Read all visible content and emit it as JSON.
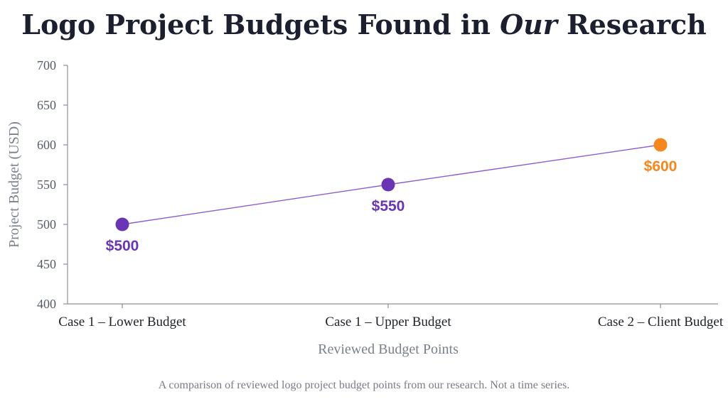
{
  "chart_data": {
    "type": "line",
    "title_parts": [
      "Logo Project Budgets Found in ",
      "Our",
      " Research"
    ],
    "xlabel": "Reviewed Budget Points",
    "ylabel": "Project Budget (USD)",
    "ylim": [
      400,
      700
    ],
    "yticks": [
      400,
      450,
      500,
      550,
      600,
      650,
      700
    ],
    "categories": [
      "Case 1 – Lower Budget",
      "Case 1 – Upper Budget",
      "Case 2 – Client Budget"
    ],
    "values": [
      500,
      550,
      600
    ],
    "data_labels": [
      "$500",
      "$550",
      "$600"
    ],
    "point_colors": [
      "#6a35b5",
      "#6a35b5",
      "#f5871f"
    ],
    "line_color": "#8d5bd0",
    "grid": false,
    "caption": "A comparison of reviewed logo project budget points from our research. Not a time series."
  }
}
